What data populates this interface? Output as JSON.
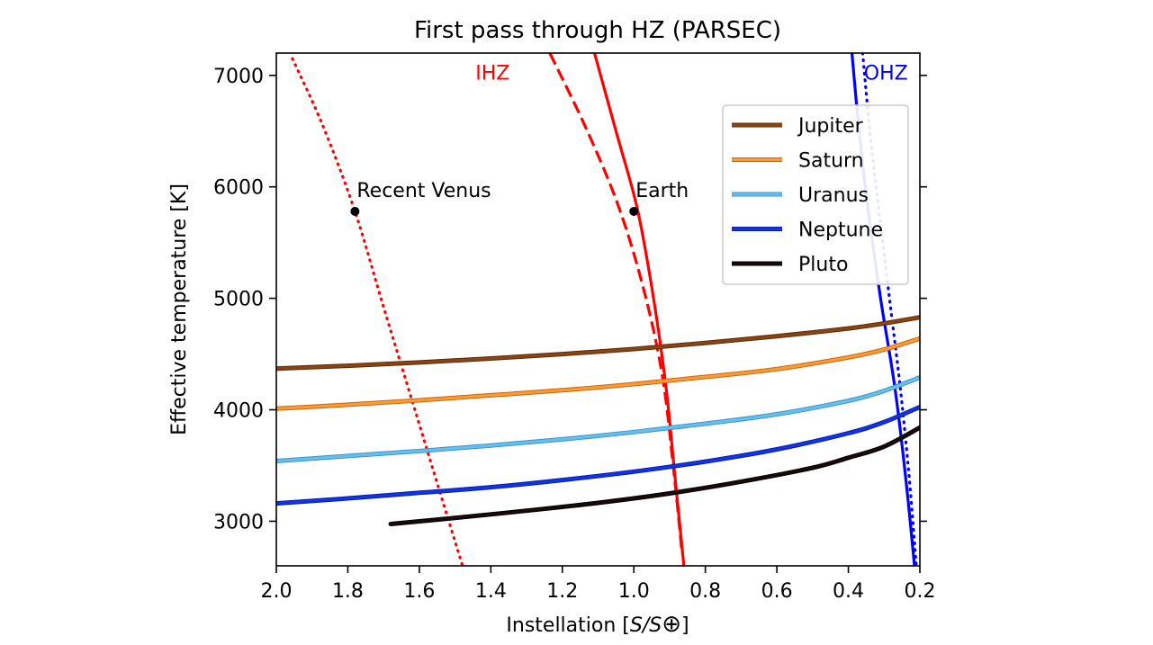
{
  "chart_data": {
    "type": "line",
    "title": "First pass through HZ (PARSEC)",
    "xlabel_prefix": "Instellation [",
    "xlabel_italic": "S/S",
    "xlabel_symbol": "⊕",
    "xlabel_suffix": "]",
    "ylabel": "Effective temperature [K]",
    "xlim": [
      2.0,
      0.2
    ],
    "ylim": [
      2600,
      7200
    ],
    "xticks": [
      2.0,
      1.8,
      1.6,
      1.4,
      1.2,
      1.0,
      0.8,
      0.6,
      0.4,
      0.2
    ],
    "xtick_labels": [
      "2.0",
      "1.8",
      "1.6",
      "1.4",
      "1.2",
      "1.0",
      "0.8",
      "0.6",
      "0.4",
      "0.2"
    ],
    "yticks": [
      3000,
      4000,
      5000,
      6000,
      7000
    ],
    "ytick_labels": [
      "3000",
      "4000",
      "5000",
      "6000",
      "7000"
    ],
    "grid": false,
    "legend_position": "upper-right",
    "series": [
      {
        "name": "Jupiter",
        "color": "#8B4513",
        "edge": "#5a2a0a",
        "x": [
          2.0,
          1.8,
          1.6,
          1.4,
          1.2,
          1.0,
          0.8,
          0.6,
          0.4,
          0.3,
          0.2
        ],
        "y": [
          4370,
          4395,
          4425,
          4460,
          4500,
          4545,
          4600,
          4660,
          4730,
          4775,
          4830
        ]
      },
      {
        "name": "Saturn",
        "color": "#FF9933",
        "edge": "#c46a10",
        "x": [
          2.0,
          1.8,
          1.6,
          1.4,
          1.2,
          1.0,
          0.8,
          0.6,
          0.4,
          0.3,
          0.2
        ],
        "y": [
          4010,
          4045,
          4085,
          4130,
          4175,
          4230,
          4295,
          4365,
          4470,
          4540,
          4640
        ]
      },
      {
        "name": "Uranus",
        "color": "#66BFEF",
        "edge": "#3a96c6",
        "x": [
          2.0,
          1.8,
          1.6,
          1.4,
          1.2,
          1.0,
          0.8,
          0.6,
          0.4,
          0.3,
          0.2
        ],
        "y": [
          3540,
          3585,
          3630,
          3680,
          3735,
          3800,
          3875,
          3960,
          4080,
          4170,
          4290
        ]
      },
      {
        "name": "Neptune",
        "color": "#1133EE",
        "edge": "#0a1f99",
        "x": [
          2.0,
          1.8,
          1.6,
          1.4,
          1.2,
          1.0,
          0.8,
          0.6,
          0.4,
          0.3,
          0.2
        ],
        "y": [
          3160,
          3205,
          3255,
          3305,
          3370,
          3445,
          3535,
          3645,
          3790,
          3890,
          4025
        ]
      },
      {
        "name": "Pluto",
        "color": "#1a0a0a",
        "edge": "#000000",
        "x": [
          1.68,
          1.5,
          1.3,
          1.1,
          0.9,
          0.7,
          0.5,
          0.4,
          0.3,
          0.2
        ],
        "y": [
          2975,
          3030,
          3095,
          3165,
          3250,
          3355,
          3480,
          3570,
          3670,
          3840
        ]
      }
    ],
    "hz_lines": [
      {
        "name": "Recent Venus",
        "style": "dotted",
        "color": "#ff0000",
        "x": [
          1.955,
          1.87,
          1.78,
          1.7,
          1.62,
          1.55,
          1.48
        ],
        "y": [
          7150,
          6550,
          5780,
          4920,
          4080,
          3340,
          2610
        ]
      },
      {
        "name": "IHZ dashed",
        "style": "dashed",
        "color": "#ff0000",
        "x": [
          1.235,
          1.13,
          1.04,
          0.97,
          0.92,
          0.89,
          0.865
        ],
        "y": [
          7200,
          6500,
          5800,
          5050,
          4300,
          3500,
          2710
        ]
      },
      {
        "name": "IHZ solid",
        "style": "solid",
        "color": "#ff0000",
        "x": [
          1.11,
          1.05,
          0.99,
          0.945,
          0.91,
          0.885,
          0.86
        ],
        "y": [
          7200,
          6500,
          5800,
          5000,
          4200,
          3400,
          2600
        ]
      },
      {
        "name": "OHZ solid",
        "style": "solid",
        "color": "#0000ff",
        "x": [
          0.39,
          0.37,
          0.345,
          0.31,
          0.27,
          0.24,
          0.215
        ],
        "y": [
          7200,
          6500,
          5800,
          5000,
          4200,
          3400,
          2600
        ]
      },
      {
        "name": "OHZ dotted",
        "style": "dotted",
        "color": "#0000ff",
        "x": [
          0.36,
          0.34,
          0.315,
          0.285,
          0.255,
          0.23,
          0.21
        ],
        "y": [
          7200,
          6500,
          5800,
          5000,
          4200,
          3400,
          2600
        ]
      }
    ],
    "points": [
      {
        "name": "Recent Venus",
        "x": 1.78,
        "y": 5780
      },
      {
        "name": "Earth",
        "x": 1.0,
        "y": 5780
      }
    ],
    "annotations": [
      {
        "text": "IHZ",
        "color": "#ff0000",
        "x": 1.395,
        "y": 6960
      },
      {
        "text": "OHZ",
        "color": "#0000ff",
        "x": 0.295,
        "y": 6960
      }
    ]
  }
}
